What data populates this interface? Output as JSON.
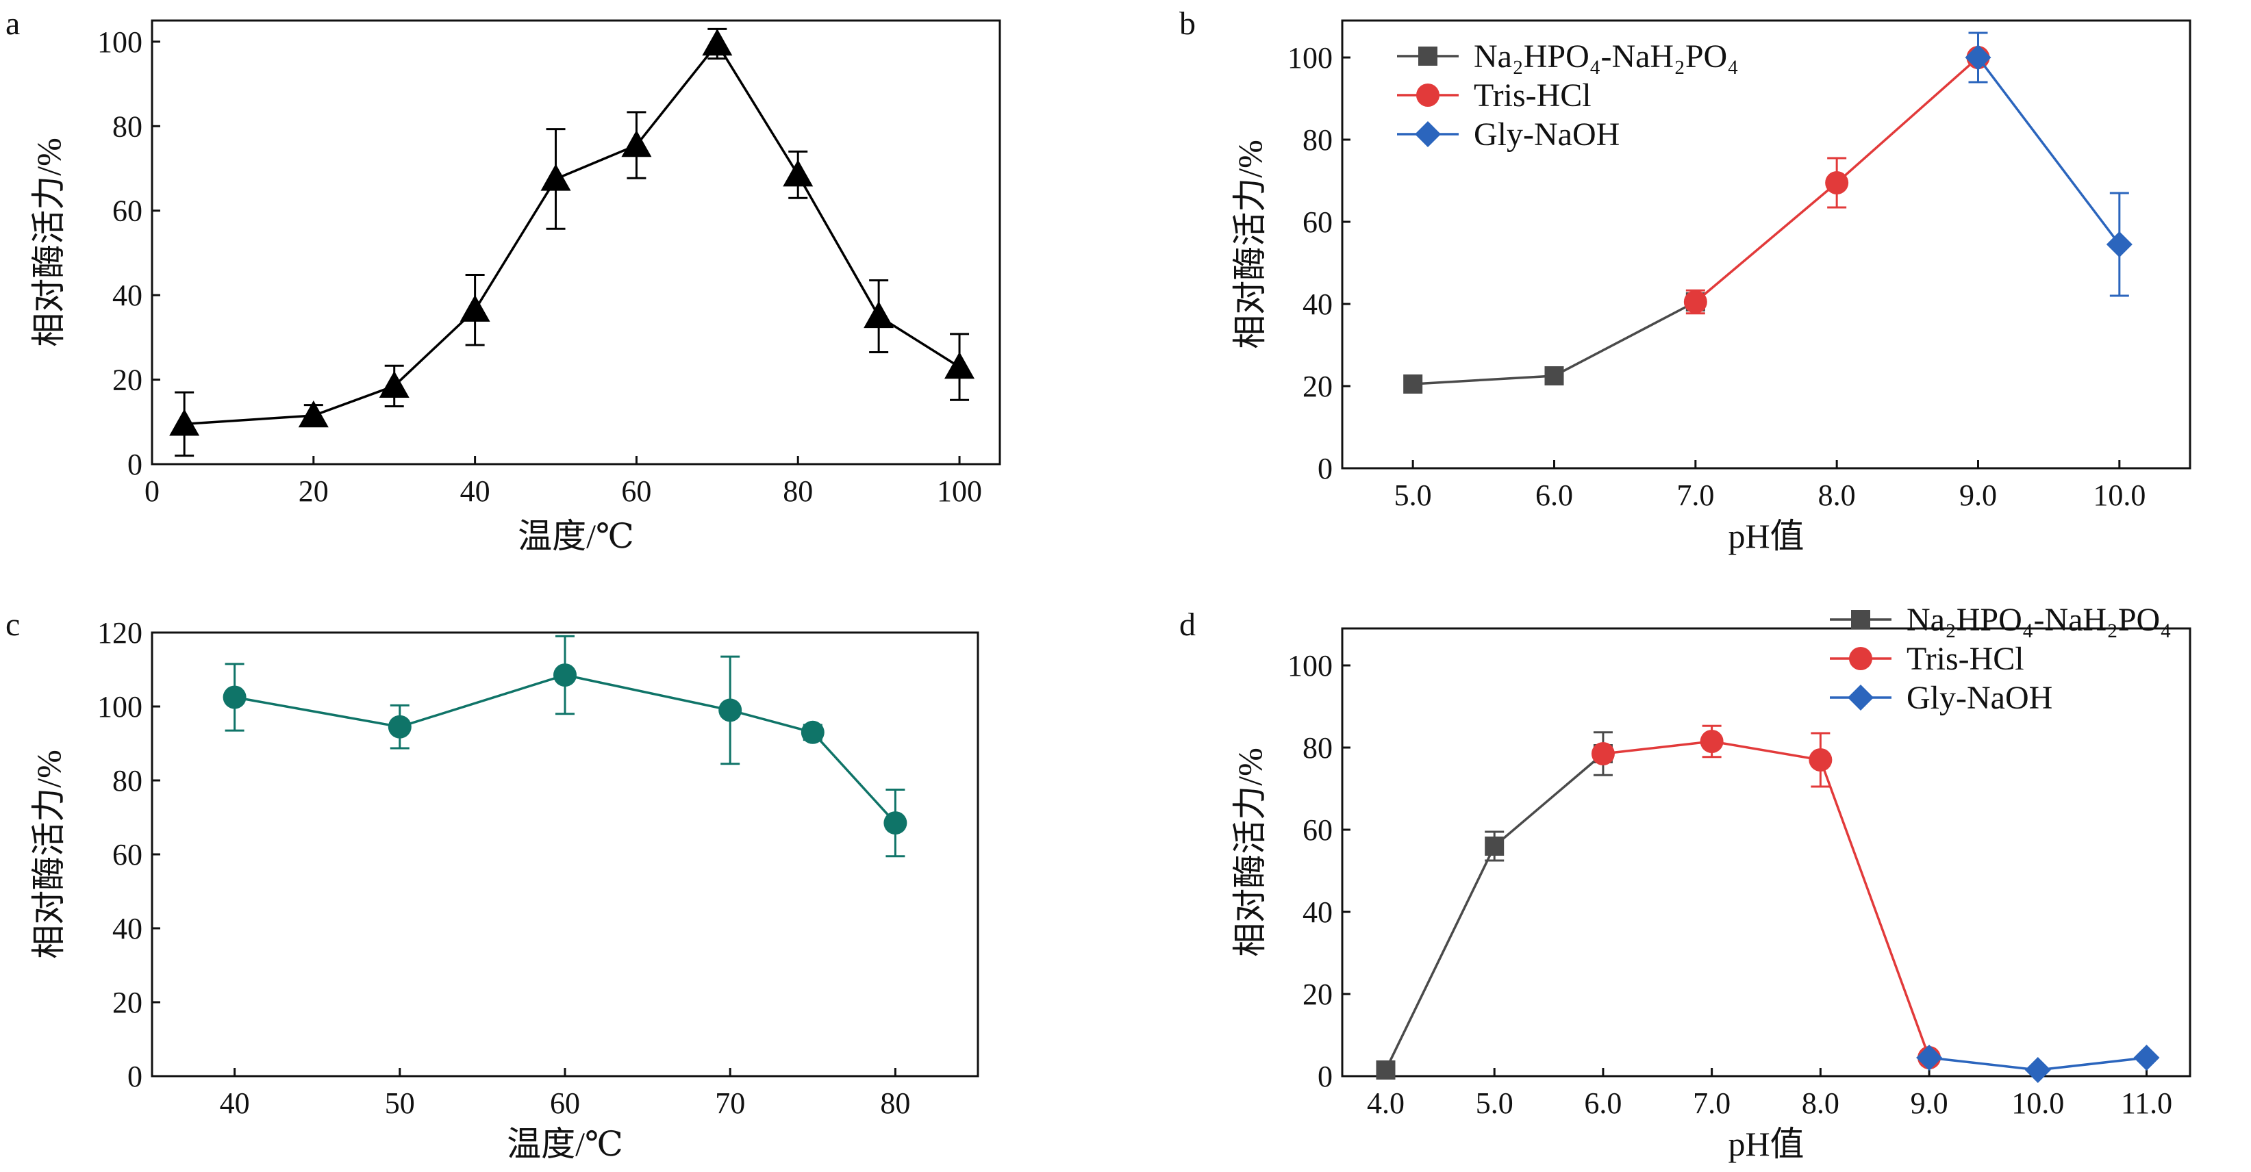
{
  "chart_data": [
    {
      "id": "a",
      "panel_label": "a",
      "type": "line",
      "xlabel": "温度/℃",
      "ylabel": "相对酶活力/%",
      "xlim": [
        0,
        105
      ],
      "ylim": [
        0,
        105
      ],
      "xticks": [
        0,
        20,
        40,
        60,
        80,
        100
      ],
      "yticks": [
        0,
        20,
        40,
        60,
        80,
        100
      ],
      "series": [
        {
          "color": "#000000",
          "marker": "triangle",
          "x": [
            4,
            20,
            30,
            40,
            50,
            60,
            70,
            80,
            90,
            100
          ],
          "y": [
            9.5,
            11.5,
            18.5,
            36.5,
            67.5,
            75.5,
            99.5,
            68.5,
            35,
            23
          ],
          "err": [
            7.5,
            2.5,
            4.8,
            8.3,
            11.8,
            7.8,
            3.5,
            5.5,
            8.5,
            7.8
          ]
        }
      ]
    },
    {
      "id": "b",
      "panel_label": "b",
      "type": "line",
      "xlabel": "pH值",
      "ylabel": "相对酶活力/%",
      "xlim": [
        4.5,
        10.5
      ],
      "ylim": [
        0,
        109
      ],
      "xticks": [
        5.0,
        6.0,
        7.0,
        8.0,
        9.0,
        10.0
      ],
      "xtick_labels": [
        "5.0",
        "6.0",
        "7.0",
        "8.0",
        "9.0",
        "10.0"
      ],
      "yticks": [
        0,
        20,
        40,
        60,
        80,
        100
      ],
      "legend": "top-left",
      "series": [
        {
          "name": "Na₂HPO₄-NaH₂PO₄",
          "color": "#4a4a4a",
          "marker": "square",
          "x": [
            5.0,
            6.0,
            7.0
          ],
          "y": [
            20.5,
            22.5,
            40.5
          ],
          "err": [
            0,
            0,
            0
          ]
        },
        {
          "name": "Tris-HCl",
          "color": "#e23a3a",
          "marker": "circle",
          "x": [
            7.0,
            8.0,
            9.0
          ],
          "y": [
            40.5,
            69.5,
            100
          ],
          "err": [
            2.8,
            6,
            0
          ]
        },
        {
          "name": "Gly-NaOH",
          "color": "#2b65bd",
          "marker": "diamond",
          "x": [
            9.0,
            10.0
          ],
          "y": [
            100,
            54.5
          ],
          "err": [
            6,
            12.5
          ]
        }
      ]
    },
    {
      "id": "c",
      "panel_label": "c",
      "type": "line",
      "xlabel": "温度/℃",
      "ylabel": "相对酶活力/%",
      "xlim": [
        35,
        85
      ],
      "ylim": [
        0,
        120
      ],
      "xticks": [
        40,
        50,
        60,
        70,
        80
      ],
      "yticks": [
        0,
        20,
        40,
        60,
        80,
        100,
        120
      ],
      "series": [
        {
          "color": "#0f7468",
          "marker": "circle",
          "x": [
            40,
            50,
            60,
            70,
            75,
            80
          ],
          "y": [
            102.5,
            94.5,
            108.5,
            99,
            93,
            68.5
          ],
          "err": [
            9,
            5.8,
            10.5,
            14.5,
            2,
            9
          ]
        }
      ]
    },
    {
      "id": "d",
      "panel_label": "d",
      "type": "line",
      "xlabel": "pH值",
      "ylabel": "相对酶活力/%",
      "xlim": [
        3.6,
        11.4
      ],
      "ylim": [
        0,
        109
      ],
      "xticks": [
        4.0,
        5.0,
        6.0,
        7.0,
        8.0,
        9.0,
        10.0,
        11.0
      ],
      "xtick_labels": [
        "4.0",
        "5.0",
        "6.0",
        "7.0",
        "8.0",
        "9.0",
        "10.0",
        "11.0"
      ],
      "yticks": [
        0,
        20,
        40,
        60,
        80,
        100
      ],
      "legend": "top-right",
      "series": [
        {
          "name": "Na₂HPO₄-NaH₂PO₄",
          "color": "#4a4a4a",
          "marker": "square",
          "x": [
            4.0,
            5.0,
            6.0
          ],
          "y": [
            1.5,
            56,
            78.5
          ],
          "err": [
            0,
            3.5,
            5.2
          ]
        },
        {
          "name": "Tris-HCl",
          "color": "#e23a3a",
          "marker": "circle",
          "x": [
            6.0,
            7.0,
            8.0,
            9.0
          ],
          "y": [
            78.5,
            81.5,
            77,
            4.5
          ],
          "err": [
            0,
            3.8,
            6.5,
            0
          ]
        },
        {
          "name": "Gly-NaOH",
          "color": "#2b65bd",
          "marker": "diamond",
          "x": [
            9.0,
            10.0,
            11.0
          ],
          "y": [
            4.5,
            1.5,
            4.5
          ],
          "err": [
            0,
            0,
            0
          ]
        }
      ]
    }
  ]
}
